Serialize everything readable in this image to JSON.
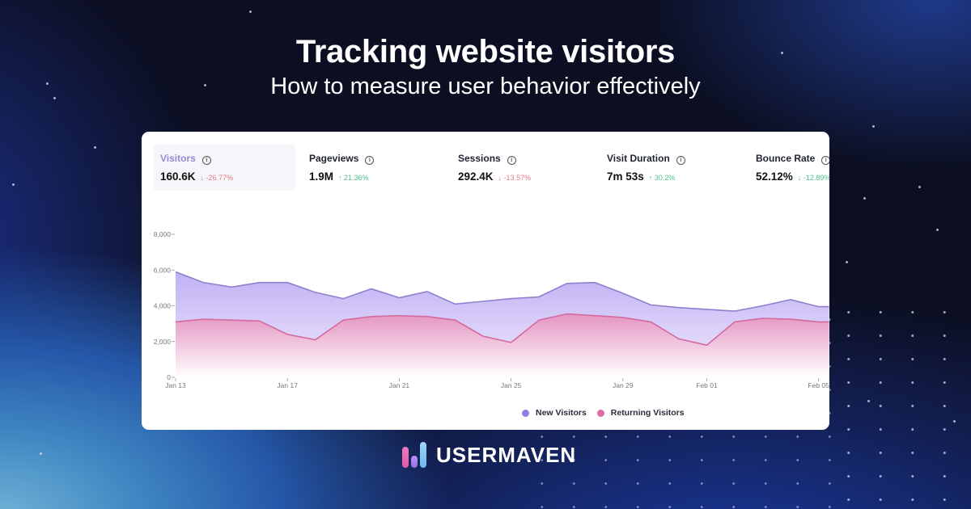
{
  "header": {
    "title": "Tracking website visitors",
    "subtitle": "How to measure user behavior effectively"
  },
  "metrics": [
    {
      "label": "Visitors",
      "value": "160.6K",
      "delta": "-26.77%",
      "direction": "down",
      "active": true
    },
    {
      "label": "Pageviews",
      "value": "1.9M",
      "delta": "21.36%",
      "direction": "up",
      "active": false
    },
    {
      "label": "Sessions",
      "value": "292.4K",
      "delta": "-13.57%",
      "direction": "down",
      "active": false
    },
    {
      "label": "Visit Duration",
      "value": "7m 53s",
      "delta": "30.2%",
      "direction": "up",
      "active": false
    },
    {
      "label": "Bounce Rate",
      "value": "52.12%",
      "delta": "-12.89%",
      "direction": "down-good",
      "active": false
    }
  ],
  "icons": {
    "info": "info-circle-icon",
    "arrow_down": "↓",
    "arrow_up": "↑"
  },
  "colors": {
    "new_visitors": "#8f7fe0",
    "returning_visitors": "#e06aa6",
    "active_metric_label": "#9a86d6",
    "delta_down": "#e07b85",
    "delta_up": "#4fbf8c"
  },
  "chart_data": {
    "type": "area",
    "title": "",
    "xlabel": "",
    "ylabel": "",
    "ylim": [
      0,
      8000
    ],
    "yticks": [
      "0",
      "2,000",
      "4,000",
      "6,000",
      "8,000"
    ],
    "xticks": [
      "Jan 13",
      "Jan 17",
      "Jan 21",
      "Jan 25",
      "Jan 29",
      "Feb 01",
      "Feb 05"
    ],
    "grid": false,
    "legend_position": "bottom",
    "x": [
      "Jan 13",
      "Jan 14",
      "Jan 15",
      "Jan 16",
      "Jan 17",
      "Jan 18",
      "Jan 19",
      "Jan 20",
      "Jan 21",
      "Jan 22",
      "Jan 23",
      "Jan 24",
      "Jan 25",
      "Jan 26",
      "Jan 27",
      "Jan 28",
      "Jan 29",
      "Jan 30",
      "Jan 31",
      "Feb 01",
      "Feb 02",
      "Feb 03",
      "Feb 04",
      "Feb 05"
    ],
    "series": [
      {
        "name": "New Visitors",
        "values": [
          5900,
          5300,
          5050,
          5300,
          5300,
          4750,
          4400,
          4950,
          4450,
          4800,
          4100,
          4250,
          4400,
          4500,
          5250,
          5300,
          4700,
          4050,
          3900,
          3800,
          3700,
          4000,
          4350,
          3950
        ]
      },
      {
        "name": "Returning Visitors",
        "values": [
          3100,
          3250,
          3200,
          3150,
          2400,
          2100,
          3200,
          3400,
          3450,
          3400,
          3200,
          2300,
          1950,
          3200,
          3550,
          3450,
          3350,
          3100,
          2150,
          1800,
          3100,
          3300,
          3250,
          3100
        ]
      }
    ]
  },
  "legend": {
    "items": [
      {
        "label": "New Visitors"
      },
      {
        "label": "Returning Visitors"
      }
    ]
  },
  "logo": {
    "text": "USERMAVEN"
  }
}
